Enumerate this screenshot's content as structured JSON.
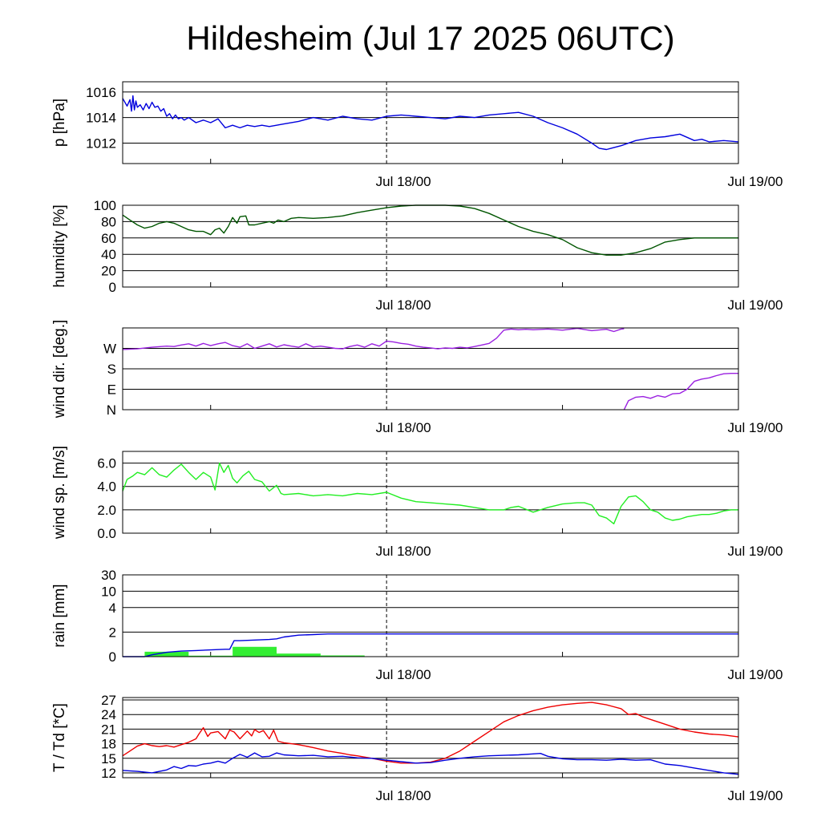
{
  "title": "Hildesheim (Jul 17 2025 06UTC)",
  "colors": {
    "pressure": "#0000dd",
    "humidity": "#005500",
    "wind_dir": "#9a20e0",
    "wind_speed": "#22ee22",
    "rain_bar": "#33ee33",
    "rain_sum": "#0000dd",
    "temperature": "#ee0000",
    "dewpoint": "#0000dd"
  },
  "time_axis": {
    "start": "Jul 17 06UTC",
    "end": "Jul 19 00UTC",
    "start_hours": 0,
    "end_hours": 42,
    "ticks": [
      {
        "h": 18,
        "label": "Jul 18/00"
      },
      {
        "h": 42,
        "label": "Jul 19/00"
      }
    ],
    "minor_ticks": [
      6,
      30
    ],
    "vline": 18
  },
  "chart_data": [
    {
      "type": "line",
      "ylabel": "p [hPa]",
      "ylim": [
        1010.4,
        1016.8
      ],
      "yticks": [
        {
          "v": 1012,
          "label": "1012"
        },
        {
          "v": 1014,
          "label": "1014"
        },
        {
          "v": 1016,
          "label": "1016"
        }
      ],
      "series": [
        {
          "color_key": "pressure",
          "x": [
            0,
            0.3,
            0.5,
            0.6,
            0.7,
            0.8,
            0.9,
            1.0,
            1.2,
            1.4,
            1.6,
            1.8,
            2.0,
            2.2,
            2.4,
            2.6,
            2.8,
            3.0,
            3.2,
            3.4,
            3.6,
            3.8,
            4.0,
            4.2,
            4.5,
            5.0,
            5.5,
            6.0,
            6.5,
            7.0,
            7.5,
            8.0,
            8.5,
            9.0,
            9.5,
            10.0,
            11.0,
            12.0,
            13.0,
            14.0,
            15.0,
            16.0,
            17.0,
            18.0,
            19.0,
            20.0,
            21.0,
            22.0,
            23.0,
            24.0,
            25.0,
            26.0,
            27.0,
            28.0,
            29.0,
            30.0,
            31.0,
            32.0,
            32.5,
            33.0,
            34.0,
            35.0,
            36.0,
            37.0,
            38.0,
            39.0,
            39.5,
            40.0,
            41.0,
            42.0
          ],
          "y": [
            1015.5,
            1014.9,
            1015.4,
            1014.5,
            1015.7,
            1014.6,
            1015.3,
            1014.8,
            1015.0,
            1014.6,
            1015.1,
            1014.7,
            1015.2,
            1014.8,
            1014.9,
            1014.5,
            1014.7,
            1014.1,
            1014.3,
            1013.9,
            1014.2,
            1013.9,
            1014.0,
            1013.8,
            1014.0,
            1013.6,
            1013.8,
            1013.6,
            1013.9,
            1013.2,
            1013.4,
            1013.2,
            1013.4,
            1013.3,
            1013.4,
            1013.3,
            1013.5,
            1013.7,
            1014.0,
            1013.8,
            1014.1,
            1013.9,
            1013.8,
            1014.1,
            1014.2,
            1014.1,
            1014.0,
            1013.9,
            1014.1,
            1014.0,
            1014.2,
            1014.3,
            1014.4,
            1014.1,
            1013.6,
            1013.2,
            1012.7,
            1012.0,
            1011.6,
            1011.5,
            1011.8,
            1012.2,
            1012.4,
            1012.5,
            1012.7,
            1012.2,
            1012.3,
            1012.1,
            1012.2,
            1012.1
          ]
        }
      ]
    },
    {
      "type": "line",
      "ylabel": "humidity [%]",
      "ylim": [
        0,
        100
      ],
      "yticks": [
        {
          "v": 0,
          "label": "0"
        },
        {
          "v": 20,
          "label": "20"
        },
        {
          "v": 40,
          "label": "40"
        },
        {
          "v": 60,
          "label": "60"
        },
        {
          "v": 80,
          "label": "80"
        },
        {
          "v": 100,
          "label": "100"
        }
      ],
      "series": [
        {
          "color_key": "humidity",
          "x": [
            0,
            0.5,
            1.0,
            1.5,
            2.0,
            2.5,
            3.0,
            3.5,
            4.0,
            4.5,
            5.0,
            5.5,
            6.0,
            6.3,
            6.6,
            6.9,
            7.2,
            7.5,
            7.8,
            8.0,
            8.4,
            8.6,
            9.0,
            9.5,
            10.0,
            10.3,
            10.6,
            11.0,
            11.5,
            12.0,
            13.0,
            14.0,
            15.0,
            16.0,
            17.0,
            18.0,
            19.0,
            20.0,
            21.0,
            22.0,
            23.0,
            24.0,
            25.0,
            26.0,
            27.0,
            28.0,
            29.0,
            30.0,
            31.0,
            32.0,
            33.0,
            34.0,
            35.0,
            36.0,
            37.0,
            38.0,
            39.0,
            40.0,
            41.0,
            42.0
          ],
          "y": [
            88,
            82,
            76,
            72,
            74,
            78,
            80,
            78,
            74,
            70,
            68,
            68,
            64,
            70,
            72,
            66,
            74,
            85,
            78,
            86,
            87,
            76,
            76,
            78,
            80,
            78,
            82,
            80,
            84,
            85,
            84,
            85,
            87,
            91,
            94,
            97,
            99,
            100,
            100,
            100,
            99,
            96,
            90,
            82,
            74,
            68,
            64,
            58,
            48,
            42,
            39,
            39,
            42,
            47,
            55,
            58,
            60,
            60,
            60,
            60
          ]
        }
      ]
    },
    {
      "type": "line",
      "ylabel": "wind dir. [deg.]",
      "ylim": [
        0,
        360
      ],
      "yticks": [
        {
          "v": 0,
          "label": "N"
        },
        {
          "v": 90,
          "label": "E"
        },
        {
          "v": 180,
          "label": "S"
        },
        {
          "v": 270,
          "label": "W"
        }
      ],
      "series": [
        {
          "color_key": "wind_dir",
          "x": [
            0,
            1,
            2,
            3,
            3.5,
            4,
            4.5,
            5,
            5.5,
            6,
            6.5,
            7,
            7.5,
            8,
            8.5,
            9,
            9.5,
            10,
            10.5,
            11,
            11.5,
            12,
            12.5,
            13,
            13.5,
            14,
            14.5,
            15,
            15.5,
            16,
            16.5,
            17,
            17.5,
            18,
            18.5,
            19,
            19.5,
            20,
            20.5,
            21,
            21.5,
            22,
            22.5,
            23,
            23.5,
            24,
            24.5,
            25,
            25.5,
            26,
            26.5,
            27,
            27.5,
            28,
            29,
            30,
            31,
            32,
            33,
            33.5,
            34,
            34.2,
            null,
            34.2,
            34.5,
            35,
            35.5,
            36,
            36.5,
            37,
            37.5,
            38,
            38.5,
            39,
            39.5,
            40,
            40.5,
            41,
            41.5,
            42
          ],
          "y": [
            265,
            268,
            275,
            280,
            278,
            285,
            290,
            280,
            292,
            282,
            290,
            296,
            282,
            275,
            290,
            270,
            280,
            290,
            276,
            286,
            280,
            275,
            290,
            276,
            280,
            275,
            270,
            268,
            278,
            285,
            275,
            290,
            280,
            302,
            298,
            292,
            288,
            280,
            275,
            272,
            268,
            272,
            270,
            275,
            272,
            278,
            285,
            292,
            315,
            350,
            355,
            352,
            354,
            352,
            355,
            350,
            358,
            348,
            354,
            344,
            355,
            356,
            null,
            0,
            40,
            55,
            58,
            50,
            62,
            55,
            70,
            72,
            90,
            125,
            135,
            140,
            150,
            158,
            160,
            160
          ]
        }
      ]
    },
    {
      "type": "line",
      "ylabel": "wind sp. [m/s]",
      "ylim": [
        0,
        7
      ],
      "yticks": [
        {
          "v": 0,
          "label": "0.0"
        },
        {
          "v": 2,
          "label": "2.0"
        },
        {
          "v": 4,
          "label": "4.0"
        },
        {
          "v": 6,
          "label": "6.0"
        }
      ],
      "series": [
        {
          "color_key": "wind_speed",
          "x": [
            0,
            0.3,
            0.7,
            1,
            1.5,
            2,
            2.5,
            3,
            3.5,
            4,
            4.5,
            5,
            5.5,
            6,
            6.3,
            6.6,
            6.9,
            7.2,
            7.5,
            7.8,
            8.2,
            8.6,
            9,
            9.5,
            10,
            10.5,
            10.8,
            11,
            12,
            13,
            14,
            15,
            16,
            17,
            18,
            19,
            20,
            21,
            22,
            23,
            24,
            25,
            26,
            26.5,
            27,
            28,
            29,
            30,
            31,
            31.5,
            32,
            32.5,
            33,
            33.5,
            34,
            34.5,
            35,
            35.5,
            36,
            36.5,
            37,
            37.5,
            38,
            38.5,
            39,
            39.5,
            40,
            40.5,
            41,
            41.5,
            42
          ],
          "y": [
            3.6,
            4.6,
            4.9,
            5.2,
            5.0,
            5.6,
            5.0,
            4.8,
            5.4,
            5.9,
            5.2,
            4.6,
            5.2,
            4.8,
            3.7,
            6.0,
            5.2,
            5.8,
            4.7,
            4.3,
            4.9,
            5.3,
            4.6,
            4.4,
            3.6,
            4.1,
            3.4,
            3.3,
            3.4,
            3.2,
            3.3,
            3.2,
            3.4,
            3.3,
            3.5,
            3.0,
            2.7,
            2.6,
            2.5,
            2.4,
            2.2,
            2.0,
            2.0,
            2.2,
            2.3,
            1.8,
            2.2,
            2.5,
            2.6,
            2.6,
            2.4,
            1.5,
            1.3,
            0.8,
            2.3,
            3.1,
            3.2,
            2.7,
            2.0,
            1.8,
            1.3,
            1.1,
            1.2,
            1.4,
            1.5,
            1.6,
            1.6,
            1.7,
            1.9,
            2.0,
            2.0
          ]
        }
      ]
    },
    {
      "type": "bar",
      "ylabel": "rain [mm]",
      "ylim": [
        0,
        30
      ],
      "yticks": [
        {
          "v": 0,
          "label": "0"
        },
        {
          "v": 2,
          "label": "2"
        },
        {
          "v": 4,
          "label": "4"
        },
        {
          "v": 10,
          "label": "10"
        },
        {
          "v": 30,
          "label": "30"
        }
      ],
      "bars": {
        "color_key": "rain_bar",
        "x_start": [
          1.5,
          4.5,
          7.5,
          10.5,
          13.5
        ],
        "x_end": [
          4.5,
          7.5,
          10.5,
          13.5,
          16.5
        ],
        "values": [
          0.4,
          0.08,
          0.8,
          0.25,
          0.1
        ]
      },
      "series": [
        {
          "color_key": "rain_sum",
          "x": [
            0,
            1.5,
            2,
            3,
            4,
            5,
            6,
            7,
            7.3,
            7.6,
            8,
            9,
            10,
            10.5,
            11,
            12,
            13,
            14,
            16,
            18,
            20,
            30,
            42
          ],
          "y": [
            0,
            0,
            0.15,
            0.35,
            0.45,
            0.5,
            0.55,
            0.6,
            0.6,
            1.3,
            1.3,
            1.35,
            1.4,
            1.45,
            1.6,
            1.75,
            1.8,
            1.85,
            1.85,
            1.85,
            1.85,
            1.85,
            1.85
          ]
        }
      ]
    },
    {
      "type": "line",
      "ylabel": "T / Td [*C]",
      "ylim": [
        11,
        27.5
      ],
      "yticks": [
        {
          "v": 12,
          "label": "12"
        },
        {
          "v": 15,
          "label": "15"
        },
        {
          "v": 18,
          "label": "18"
        },
        {
          "v": 21,
          "label": "21"
        },
        {
          "v": 24,
          "label": "24"
        },
        {
          "v": 27,
          "label": "27"
        }
      ],
      "series": [
        {
          "color_key": "temperature",
          "x": [
            0,
            0.5,
            1,
            1.5,
            2,
            2.5,
            3,
            3.5,
            4,
            4.5,
            5,
            5.2,
            5.5,
            5.8,
            6,
            6.5,
            7,
            7.3,
            7.6,
            8,
            8.5,
            8.8,
            9,
            9.3,
            9.6,
            10,
            10.3,
            10.6,
            11,
            11.5,
            12,
            13,
            14,
            15,
            15.5,
            16,
            17,
            18,
            19,
            20,
            21,
            22,
            23,
            24,
            25,
            26,
            27,
            28,
            29,
            30,
            31,
            32,
            33,
            34,
            34.5,
            35,
            35.5,
            36,
            37,
            38,
            39,
            40,
            41,
            42
          ],
          "y": [
            15.5,
            16.5,
            17.5,
            18,
            17.6,
            17.4,
            17.6,
            17.3,
            17.8,
            18.3,
            19,
            20,
            21.3,
            19.5,
            20.2,
            20.5,
            19,
            20.8,
            20.4,
            19,
            20.6,
            19.6,
            20.9,
            20.3,
            20.7,
            19,
            20.8,
            18.5,
            18.2,
            18.0,
            17.8,
            17.2,
            16.5,
            16.0,
            15.7,
            15.5,
            15.0,
            14.4,
            14.0,
            14.0,
            14.2,
            15.0,
            16.5,
            18.5,
            20.5,
            22.5,
            23.8,
            24.8,
            25.5,
            26.0,
            26.3,
            26.5,
            26.0,
            25.2,
            24.0,
            24.2,
            23.5,
            23.0,
            22.0,
            21.0,
            20.4,
            20.0,
            19.8,
            19.4
          ]
        },
        {
          "color_key": "dewpoint",
          "x": [
            0,
            1,
            2,
            3,
            3.5,
            4,
            4.5,
            5,
            5.5,
            6,
            6.5,
            7,
            7.5,
            8,
            8.5,
            9,
            9.5,
            10,
            10.5,
            11,
            12,
            13,
            14,
            15,
            16,
            17,
            18,
            19,
            20,
            21,
            22,
            23,
            24,
            25,
            26,
            27,
            28,
            28.5,
            29,
            30,
            31,
            32,
            33,
            34,
            35,
            36,
            37,
            38,
            39,
            40,
            41,
            42
          ],
          "y": [
            12.5,
            12.3,
            12.0,
            12.6,
            13.3,
            12.9,
            13.5,
            13.4,
            13.8,
            14.0,
            14.4,
            14.0,
            15.0,
            15.8,
            15.2,
            16.1,
            15.3,
            15.4,
            16.1,
            15.7,
            15.5,
            15.6,
            15.3,
            15.4,
            15.1,
            15.0,
            14.6,
            14.3,
            14.0,
            14.1,
            14.6,
            15.0,
            15.3,
            15.5,
            15.6,
            15.7,
            15.9,
            16.0,
            15.4,
            14.9,
            14.7,
            14.7,
            14.6,
            14.8,
            14.6,
            14.7,
            13.8,
            13.5,
            13.0,
            12.5,
            12.0,
            11.7
          ]
        }
      ]
    }
  ]
}
